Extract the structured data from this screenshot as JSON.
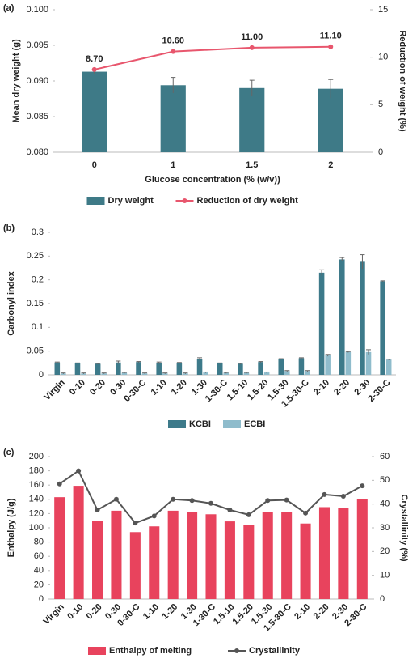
{
  "chart_data": [
    {
      "type": "combo",
      "panel_label": "(a)",
      "categories": [
        "0",
        "1",
        "1.5",
        "2"
      ],
      "x_label": "Glucose concentration (% (w/v))",
      "y_label": "Mean dry weight (g)",
      "y2_label": "Reduction of weight (%)",
      "ylim": [
        0.08,
        0.1
      ],
      "yticks": [
        {
          "value": 0.08,
          "label": "0.080"
        },
        0.085,
        {
          "value": 0.09,
          "label": "0.090"
        },
        0.095,
        {
          "value": 0.1,
          "label": "0.100"
        }
      ],
      "y2lim": [
        0,
        15
      ],
      "y2ticks": [
        0,
        5,
        10,
        15
      ],
      "legend": "bottom",
      "series": [
        {
          "name": "Dry weight",
          "color": "#3e7a87",
          "values": [
            0.0913,
            0.0894,
            0.089,
            0.0889
          ],
          "errors": [
            0.0003,
            0.0011,
            0.0011,
            0.0013
          ]
        },
        {
          "name": "Reduction of dry weight",
          "color": "#e8566d",
          "axis": "y2",
          "values": [
            8.7,
            10.6,
            11.0,
            11.1
          ],
          "value_labels": [
            "8.70",
            "10.60",
            "11.00",
            "11.10"
          ]
        }
      ]
    },
    {
      "type": "bar",
      "panel_label": "(b)",
      "categories": [
        "Virgin",
        "0-10",
        "0-20",
        "0-30",
        "0-30-C",
        "1-10",
        "1-20",
        "1-30",
        "1-30-C",
        "1.5-10",
        "1.5-20",
        "1.5-30",
        "1.5-30-C",
        "2-10",
        "2-20",
        "2-30",
        "2-30-C"
      ],
      "y_label": "Carbonyl index",
      "ylim": [
        0,
        0.3
      ],
      "yticks": [
        0,
        0.05,
        0.1,
        0.15,
        0.2,
        0.25,
        0.3
      ],
      "legend": "bottom",
      "series": [
        {
          "name": "KCBI",
          "color": "#3d7a8a",
          "values": [
            0.026,
            0.024,
            0.023,
            0.026,
            0.027,
            0.025,
            0.025,
            0.034,
            0.024,
            0.023,
            0.027,
            0.033,
            0.035,
            0.215,
            0.243,
            0.238,
            0.197
          ],
          "errors": [
            0.001,
            0.001,
            0.001,
            0.003,
            0.001,
            0.002,
            0.001,
            0.002,
            0.001,
            0.001,
            0.001,
            0.001,
            0.001,
            0.006,
            0.004,
            0.015,
            0.001
          ]
        },
        {
          "name": "ECBI",
          "color": "#8fbccc",
          "values": [
            0.003,
            0.003,
            0.003,
            0.004,
            0.003,
            0.003,
            0.003,
            0.005,
            0.004,
            0.004,
            0.005,
            0.008,
            0.008,
            0.041,
            0.048,
            0.048,
            0.032
          ],
          "errors": [
            0.001,
            0.001,
            0.001,
            0.001,
            0.001,
            0.001,
            0.001,
            0.001,
            0.001,
            0.001,
            0.001,
            0.001,
            0.001,
            0.002,
            0.001,
            0.005,
            0.001
          ]
        }
      ]
    },
    {
      "type": "combo",
      "panel_label": "(c)",
      "categories": [
        "Virgin",
        "0-10",
        "0-20",
        "0-30",
        "0-30-C",
        "1-10",
        "1-20",
        "1-30",
        "1-30-C",
        "1.5-10",
        "1.5-20",
        "1.5-30",
        "1.5-30-C",
        "2-10",
        "2-20",
        "2-30",
        "2-30-C"
      ],
      "y_label": "Enthalpy (J/g)",
      "y2_label": "Crystallinity (%)",
      "ylim": [
        0,
        200
      ],
      "yticks": [
        0,
        20,
        40,
        60,
        80,
        100,
        120,
        140,
        160,
        180,
        200
      ],
      "y2lim": [
        0,
        60
      ],
      "y2ticks": [
        0,
        10,
        20,
        30,
        40,
        50,
        60
      ],
      "legend": "bottom",
      "series": [
        {
          "name": "Enthalpy of melting",
          "color": "#e8435d",
          "values": [
            143,
            159,
            110,
            124,
            94,
            102,
            124,
            122,
            119,
            109,
            104,
            122,
            122,
            106,
            129,
            128,
            140
          ]
        },
        {
          "name": "Crystallinity",
          "color": "#555555",
          "axis": "y2",
          "values": [
            48.5,
            54,
            37.5,
            42,
            32,
            35,
            42,
            41.5,
            40.3,
            37.5,
            35.5,
            41.5,
            41.7,
            36.2,
            44,
            43.3,
            47.7
          ]
        }
      ]
    }
  ]
}
